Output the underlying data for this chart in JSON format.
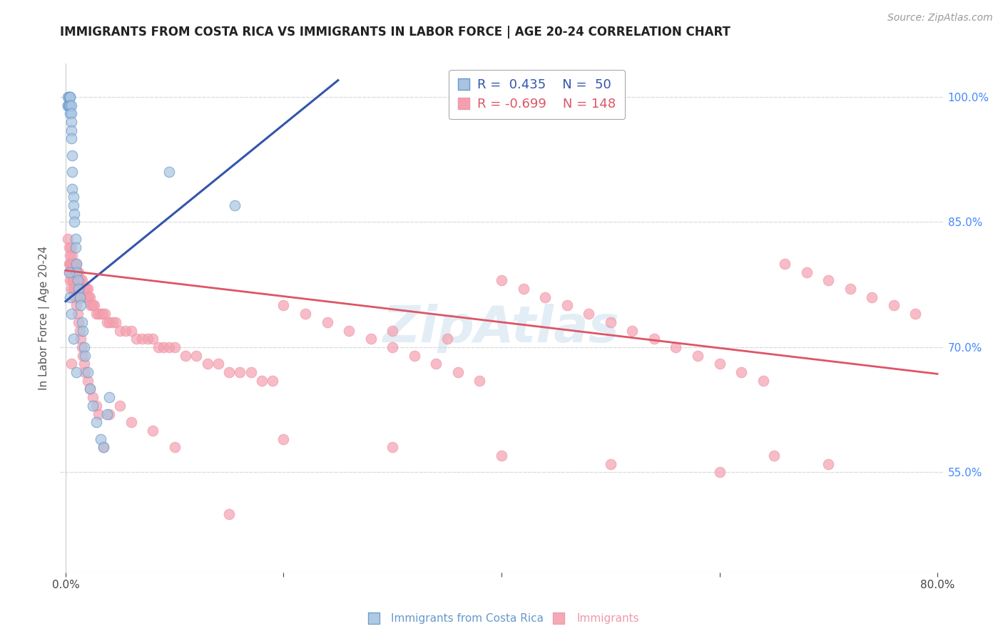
{
  "title": "IMMIGRANTS FROM COSTA RICA VS IMMIGRANTS IN LABOR FORCE | AGE 20-24 CORRELATION CHART",
  "source": "Source: ZipAtlas.com",
  "ylabel": "In Labor Force | Age 20-24",
  "blue_r": 0.435,
  "blue_n": 50,
  "pink_r": -0.699,
  "pink_n": 148,
  "blue_color": "#a8c4e0",
  "pink_color": "#f4a0b0",
  "blue_edge_color": "#6699cc",
  "pink_edge_color": "#ee99aa",
  "blue_line_color": "#3355aa",
  "pink_line_color": "#dd5566",
  "title_color": "#222222",
  "source_color": "#999999",
  "right_label_color": "#4488ff",
  "grid_color": "#dddddd",
  "background_color": "#ffffff",
  "xlim": [
    -0.005,
    0.805
  ],
  "ylim": [
    0.43,
    1.04
  ],
  "right_yticks": [
    0.55,
    0.7,
    0.85,
    1.0
  ],
  "blue_line_x": [
    0.0,
    0.25
  ],
  "blue_line_y": [
    0.755,
    1.02
  ],
  "pink_line_x": [
    0.0,
    0.8
  ],
  "pink_line_y": [
    0.792,
    0.668
  ],
  "blue_x": [
    0.002,
    0.002,
    0.002,
    0.003,
    0.003,
    0.003,
    0.003,
    0.004,
    0.004,
    0.004,
    0.004,
    0.005,
    0.005,
    0.005,
    0.005,
    0.005,
    0.006,
    0.006,
    0.006,
    0.007,
    0.007,
    0.008,
    0.008,
    0.009,
    0.009,
    0.01,
    0.01,
    0.011,
    0.012,
    0.013,
    0.014,
    0.015,
    0.016,
    0.017,
    0.018,
    0.02,
    0.022,
    0.025,
    0.028,
    0.032,
    0.035,
    0.038,
    0.04,
    0.003,
    0.004,
    0.005,
    0.007,
    0.01,
    0.095,
    0.155
  ],
  "blue_y": [
    1.0,
    0.99,
    0.99,
    1.0,
    1.0,
    0.99,
    0.99,
    1.0,
    1.0,
    0.99,
    0.98,
    0.99,
    0.98,
    0.97,
    0.96,
    0.95,
    0.93,
    0.91,
    0.89,
    0.88,
    0.87,
    0.86,
    0.85,
    0.83,
    0.82,
    0.8,
    0.79,
    0.78,
    0.77,
    0.76,
    0.75,
    0.73,
    0.72,
    0.7,
    0.69,
    0.67,
    0.65,
    0.63,
    0.61,
    0.59,
    0.58,
    0.62,
    0.64,
    0.79,
    0.76,
    0.74,
    0.71,
    0.67,
    0.91,
    0.87
  ],
  "pink_x": [
    0.002,
    0.003,
    0.003,
    0.003,
    0.004,
    0.004,
    0.004,
    0.005,
    0.005,
    0.005,
    0.005,
    0.006,
    0.006,
    0.006,
    0.007,
    0.007,
    0.007,
    0.008,
    0.008,
    0.008,
    0.008,
    0.009,
    0.009,
    0.009,
    0.01,
    0.01,
    0.01,
    0.01,
    0.011,
    0.011,
    0.011,
    0.012,
    0.012,
    0.013,
    0.013,
    0.014,
    0.014,
    0.015,
    0.015,
    0.016,
    0.016,
    0.017,
    0.017,
    0.018,
    0.018,
    0.019,
    0.02,
    0.02,
    0.021,
    0.022,
    0.023,
    0.024,
    0.025,
    0.026,
    0.028,
    0.03,
    0.032,
    0.034,
    0.036,
    0.038,
    0.04,
    0.043,
    0.046,
    0.05,
    0.055,
    0.06,
    0.065,
    0.07,
    0.075,
    0.08,
    0.085,
    0.09,
    0.095,
    0.1,
    0.11,
    0.12,
    0.13,
    0.14,
    0.15,
    0.16,
    0.17,
    0.18,
    0.19,
    0.2,
    0.22,
    0.24,
    0.26,
    0.28,
    0.3,
    0.32,
    0.34,
    0.36,
    0.38,
    0.4,
    0.42,
    0.44,
    0.46,
    0.48,
    0.5,
    0.52,
    0.54,
    0.56,
    0.58,
    0.6,
    0.62,
    0.64,
    0.66,
    0.68,
    0.7,
    0.72,
    0.74,
    0.76,
    0.78,
    0.005,
    0.006,
    0.007,
    0.008,
    0.009,
    0.01,
    0.011,
    0.012,
    0.013,
    0.014,
    0.015,
    0.016,
    0.017,
    0.018,
    0.02,
    0.022,
    0.025,
    0.028,
    0.03,
    0.035,
    0.04,
    0.05,
    0.06,
    0.08,
    0.1,
    0.15,
    0.2,
    0.3,
    0.4,
    0.5,
    0.6,
    0.65,
    0.7,
    0.3,
    0.35
  ],
  "pink_y": [
    0.83,
    0.82,
    0.8,
    0.79,
    0.81,
    0.8,
    0.78,
    0.82,
    0.8,
    0.79,
    0.77,
    0.81,
    0.79,
    0.78,
    0.8,
    0.79,
    0.77,
    0.8,
    0.79,
    0.78,
    0.76,
    0.8,
    0.79,
    0.77,
    0.8,
    0.79,
    0.78,
    0.76,
    0.79,
    0.78,
    0.77,
    0.79,
    0.78,
    0.78,
    0.77,
    0.78,
    0.77,
    0.78,
    0.77,
    0.77,
    0.76,
    0.77,
    0.76,
    0.77,
    0.76,
    0.77,
    0.77,
    0.76,
    0.76,
    0.76,
    0.75,
    0.75,
    0.75,
    0.75,
    0.74,
    0.74,
    0.74,
    0.74,
    0.74,
    0.73,
    0.73,
    0.73,
    0.73,
    0.72,
    0.72,
    0.72,
    0.71,
    0.71,
    0.71,
    0.71,
    0.7,
    0.7,
    0.7,
    0.7,
    0.69,
    0.69,
    0.68,
    0.68,
    0.67,
    0.67,
    0.67,
    0.66,
    0.66,
    0.75,
    0.74,
    0.73,
    0.72,
    0.71,
    0.7,
    0.69,
    0.68,
    0.67,
    0.66,
    0.78,
    0.77,
    0.76,
    0.75,
    0.74,
    0.73,
    0.72,
    0.71,
    0.7,
    0.69,
    0.68,
    0.67,
    0.66,
    0.8,
    0.79,
    0.78,
    0.77,
    0.76,
    0.75,
    0.74,
    0.68,
    0.8,
    0.78,
    0.77,
    0.76,
    0.75,
    0.74,
    0.73,
    0.72,
    0.71,
    0.7,
    0.69,
    0.68,
    0.67,
    0.66,
    0.65,
    0.64,
    0.63,
    0.62,
    0.58,
    0.62,
    0.63,
    0.61,
    0.6,
    0.58,
    0.5,
    0.59,
    0.58,
    0.57,
    0.56,
    0.55,
    0.57,
    0.56,
    0.72,
    0.71
  ]
}
